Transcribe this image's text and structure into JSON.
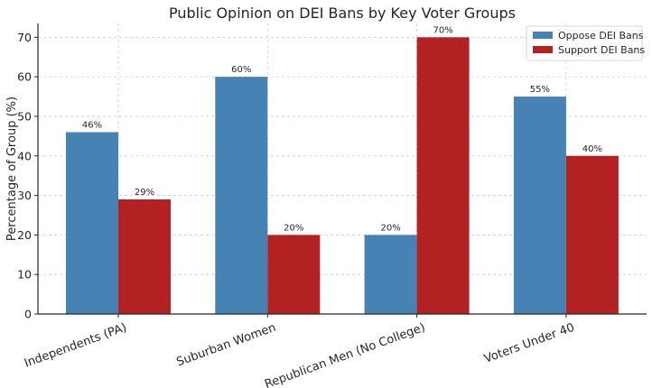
{
  "chart_data": {
    "type": "bar",
    "title": "Public Opinion on DEI Bans by Key Voter Groups",
    "xlabel": "",
    "ylabel": "Percentage of Group (%)",
    "ylim": [
      0,
      73.5
    ],
    "yticks": [
      0,
      10,
      20,
      30,
      40,
      50,
      60,
      70
    ],
    "categories": [
      "Independents (PA)",
      "Suburban Women",
      "Republican Men (No College)",
      "Voters Under 40"
    ],
    "series": [
      {
        "name": "Oppose DEI Bans",
        "values": [
          46,
          60,
          20,
          55
        ],
        "labels": [
          "46%",
          "60%",
          "20%",
          "55%"
        ],
        "color": "#4682b4"
      },
      {
        "name": "Support DEI Bans",
        "values": [
          29,
          20,
          70,
          40
        ],
        "labels": [
          "29%",
          "20%",
          "70%",
          "40%"
        ],
        "color": "#b22222"
      }
    ],
    "grid": true,
    "legend_position": "top-right"
  }
}
